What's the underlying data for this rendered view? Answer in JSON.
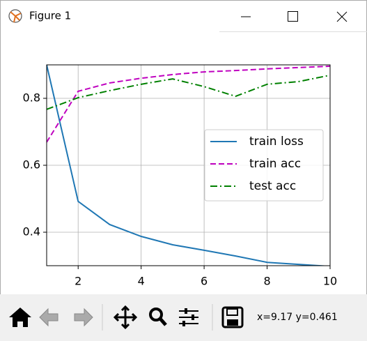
{
  "window": {
    "title": "Figure 1"
  },
  "status": "x=9.17 y=0.461",
  "chart_data": {
    "type": "line",
    "x": [
      1,
      2,
      3,
      4,
      5,
      6,
      7,
      8,
      9,
      10
    ],
    "series": [
      {
        "name": "train loss",
        "color": "#1f77b4",
        "dash": "solid",
        "values": [
          0.9,
          0.492,
          0.423,
          0.3875,
          0.3625,
          0.346,
          0.329,
          0.31,
          0.304,
          0.298
        ]
      },
      {
        "name": "train acc",
        "color": "#bf00bf",
        "dash": "dashed",
        "values": [
          0.669,
          0.821,
          0.846,
          0.86,
          0.871,
          0.879,
          0.883,
          0.888,
          0.892,
          0.896
        ]
      },
      {
        "name": "test acc",
        "color": "#008000",
        "dash": "dashdot",
        "values": [
          0.767,
          0.802,
          0.823,
          0.842,
          0.858,
          0.835,
          0.806,
          0.842,
          0.85,
          0.869
        ]
      }
    ],
    "xlim": [
      1,
      10
    ],
    "xticks": [
      2,
      4,
      6,
      8,
      10
    ],
    "ylim": [
      0.3,
      0.9
    ],
    "yticks": [
      0.4,
      0.6,
      0.8
    ],
    "grid": true,
    "legend": "center right"
  }
}
